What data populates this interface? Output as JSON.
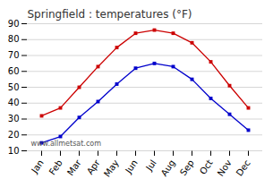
{
  "chart_data": {
    "type": "line",
    "title": "Springfield : temperatures (°F)",
    "categories": [
      "Jan",
      "Feb",
      "Mar",
      "Apr",
      "May",
      "Jun",
      "Jul",
      "Aug",
      "Sep",
      "Oct",
      "Nov",
      "Dec"
    ],
    "series": [
      {
        "color": "#cc0000",
        "marker": "square",
        "values": [
          32,
          37,
          50,
          63,
          75,
          84,
          86,
          84,
          78,
          66,
          51,
          37
        ]
      },
      {
        "color": "#0000cc",
        "marker": "square",
        "values": [
          15,
          19,
          31,
          41,
          52,
          62,
          65,
          63,
          55,
          43,
          33,
          23
        ]
      }
    ],
    "ylim": [
      10,
      90
    ],
    "yticks": [
      10,
      20,
      30,
      40,
      50,
      60,
      70,
      80,
      90
    ],
    "grid": true,
    "annotations": [
      "www.allmetsat.com"
    ]
  }
}
